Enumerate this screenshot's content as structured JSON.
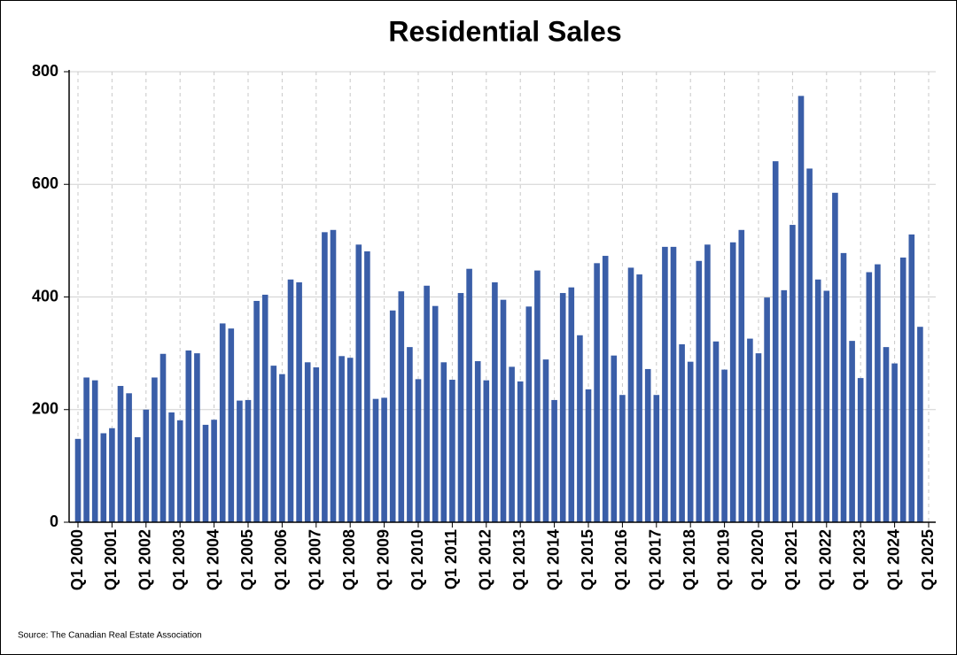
{
  "chart_data": {
    "type": "bar",
    "title": "Residential Sales",
    "source": "Source: The Canadian Real Estate Association",
    "categories": [
      "Q1 2000",
      null,
      null,
      null,
      "Q1 2001",
      null,
      null,
      null,
      "Q1 2002",
      null,
      null,
      null,
      "Q1 2003",
      null,
      null,
      null,
      "Q1 2004",
      null,
      null,
      null,
      "Q1 2005",
      null,
      null,
      null,
      "Q1 2006",
      null,
      null,
      null,
      "Q1 2007",
      null,
      null,
      null,
      "Q1 2008",
      null,
      null,
      null,
      "Q1 2009",
      null,
      null,
      null,
      "Q1 2010",
      null,
      null,
      null,
      "Q1 2011",
      null,
      null,
      null,
      "Q1 2012",
      null,
      null,
      null,
      "Q1 2013",
      null,
      null,
      null,
      "Q1 2014",
      null,
      null,
      null,
      "Q1 2015",
      null,
      null,
      null,
      "Q1 2016",
      null,
      null,
      null,
      "Q1 2017",
      null,
      null,
      null,
      "Q1 2018",
      null,
      null,
      null,
      "Q1 2019",
      null,
      null,
      null,
      "Q1 2020",
      null,
      null,
      null,
      "Q1 2021",
      null,
      null,
      null,
      "Q1 2022",
      null,
      null,
      null,
      "Q1 2023",
      null,
      null,
      null,
      "Q1 2024",
      null,
      null,
      null,
      "Q1 2025"
    ],
    "values": [
      148,
      257,
      252,
      158,
      167,
      242,
      229,
      151,
      200,
      257,
      299,
      195,
      181,
      305,
      300,
      173,
      182,
      353,
      344,
      216,
      217,
      393,
      404,
      278,
      263,
      431,
      426,
      284,
      275,
      515,
      519,
      295,
      292,
      493,
      481,
      219,
      221,
      376,
      410,
      311,
      254,
      420,
      384,
      284,
      253,
      407,
      450,
      286,
      252,
      426,
      395,
      276,
      250,
      383,
      447,
      289,
      217,
      407,
      417,
      332,
      236,
      460,
      473,
      296,
      226,
      452,
      440,
      272,
      226,
      489,
      489,
      316,
      285,
      464,
      493,
      321,
      271,
      497,
      519,
      326,
      300,
      399,
      641,
      412,
      528,
      757,
      628,
      431,
      411,
      585,
      478,
      322,
      256,
      444,
      458,
      311,
      282,
      470,
      511,
      347,
      null
    ],
    "color": "#3a5ea8",
    "ylim": [
      0,
      800
    ],
    "yticks": [
      0,
      200,
      400,
      600,
      800
    ],
    "grid": true
  }
}
